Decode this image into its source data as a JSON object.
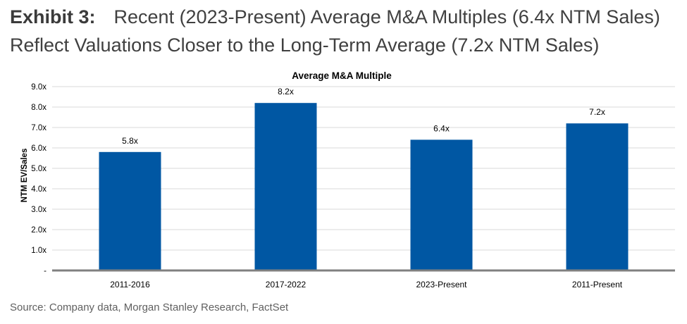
{
  "header": {
    "exhibit_label": "Exhibit 3:",
    "title_line1": "Recent (2023-Present) Average M&A Multiples (6.4x NTM Sales)",
    "title_line2": "Reflect Valuations Closer to the Long-Term Average (7.2x NTM Sales)"
  },
  "chart_data": {
    "type": "bar",
    "title": "Average M&A Multiple",
    "xlabel": "",
    "ylabel": "NTM EV/Sales",
    "categories": [
      "2011-2016",
      "2017-2022",
      "2023-Present",
      "2011-Present"
    ],
    "values": [
      5.8,
      8.2,
      6.4,
      7.2
    ],
    "data_labels": [
      "5.8x",
      "8.2x",
      "6.4x",
      "7.2x"
    ],
    "ylim": [
      0,
      9
    ],
    "yticks": [
      0,
      1,
      2,
      3,
      4,
      5,
      6,
      7,
      8,
      9
    ],
    "ytick_labels": [
      "-",
      "1.0x",
      "2.0x",
      "3.0x",
      "4.0x",
      "5.0x",
      "6.0x",
      "7.0x",
      "8.0x",
      "9.0x"
    ],
    "grid": true,
    "bar_color": "#0057A3",
    "grid_color": "#D9D9D9",
    "axis_color": "#808080"
  },
  "footer": {
    "source": "Source: Company data, Morgan Stanley Research, FactSet"
  }
}
